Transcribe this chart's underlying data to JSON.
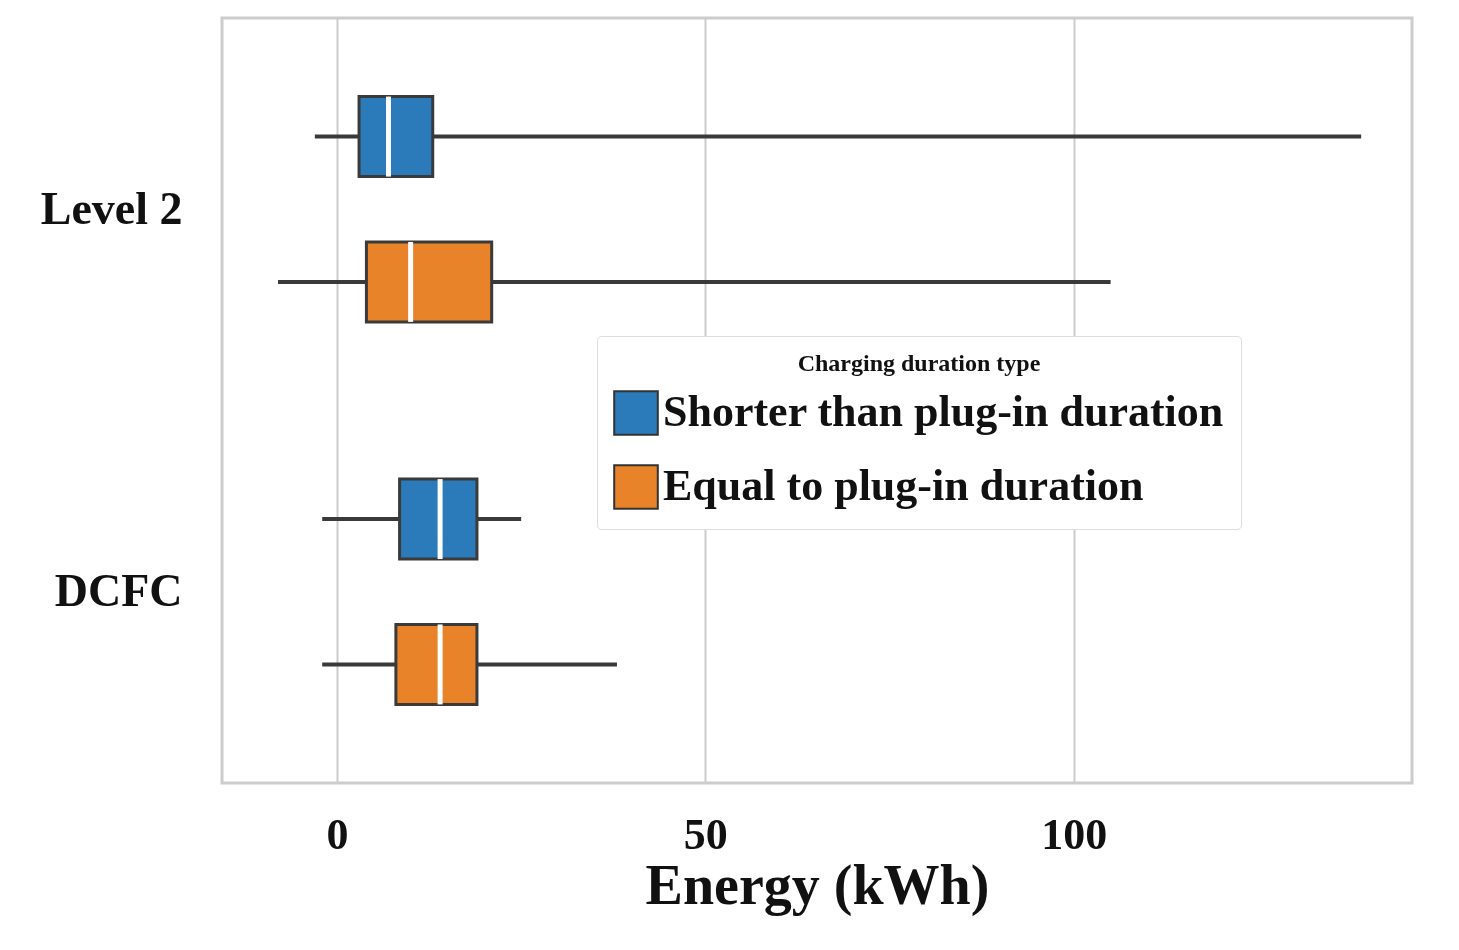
{
  "chart_data": {
    "type": "box",
    "orientation": "horizontal",
    "xlabel": "Energy (kWh)",
    "legend_title": "Charging duration type",
    "categories": [
      "Level 2",
      "DCFC"
    ],
    "xlim": [
      -15.6,
      145.9
    ],
    "xticks": [
      0,
      50,
      100
    ],
    "grid": "x",
    "legend": "right",
    "series": [
      {
        "name": "Shorter than plug-in duration",
        "color": "#2b7bba",
        "boxes": [
          {
            "low": -3,
            "q1": 3,
            "median": 7,
            "q3": 13,
            "high": 139
          },
          {
            "low": -2,
            "q1": 8.5,
            "median": 14,
            "q3": 19,
            "high": 25
          }
        ]
      },
      {
        "name": "Equal to plug-in duration",
        "color": "#e8832a",
        "boxes": [
          {
            "low": -8,
            "q1": 4,
            "median": 10,
            "q3": 21,
            "high": 105
          },
          {
            "low": -2,
            "q1": 8,
            "median": 14,
            "q3": 19,
            "high": 38
          }
        ]
      }
    ]
  }
}
